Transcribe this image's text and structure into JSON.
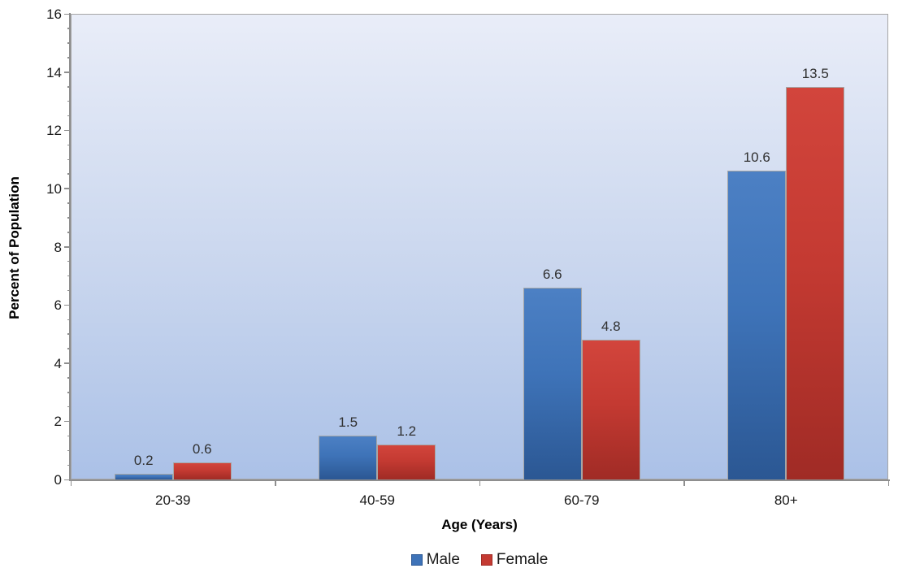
{
  "chart_data": {
    "type": "bar",
    "title": "",
    "xlabel": "Age (Years)",
    "ylabel": "Percent of Population",
    "categories": [
      "20-39",
      "40-59",
      "60-79",
      "80+"
    ],
    "series": [
      {
        "name": "Male",
        "color": "#3E73B8",
        "color_top": "#4C80C4",
        "color_bottom": "#2B5793",
        "values": [
          0.2,
          1.5,
          6.6,
          10.6
        ]
      },
      {
        "name": "Female",
        "color": "#C43A32",
        "color_top": "#D2453C",
        "color_bottom": "#A02B25",
        "values": [
          0.6,
          1.2,
          4.8,
          13.5
        ]
      }
    ],
    "ylim": [
      0,
      16
    ],
    "y_major_step": 2,
    "y_minor_step": 0.5,
    "grid": false,
    "legend_position": "bottom",
    "data_labels": true,
    "plot_bg_top": "#E9EDF8",
    "plot_bg_mid": "#C9D6EE",
    "plot_bg_bottom": "#ABC1E7",
    "axis_color": "#8E8E8E",
    "border_color": "#A6A6A6"
  }
}
